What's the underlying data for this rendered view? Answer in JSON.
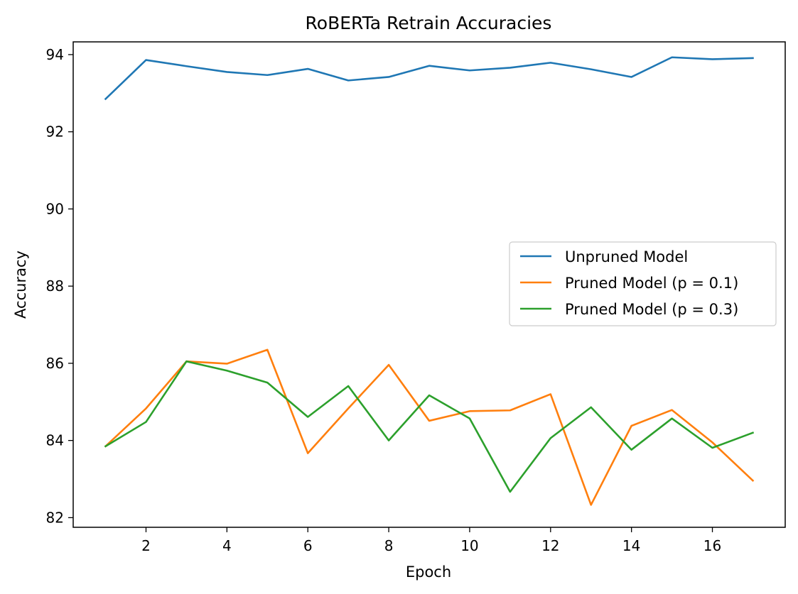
{
  "chart_data": {
    "type": "line",
    "title": "RoBERTa Retrain Accuracies",
    "xlabel": "Epoch",
    "ylabel": "Accuracy",
    "x": [
      1,
      2,
      3,
      4,
      5,
      6,
      7,
      8,
      9,
      10,
      11,
      12,
      13,
      14,
      15,
      16,
      17
    ],
    "xticks": [
      "2",
      "4",
      "6",
      "8",
      "10",
      "12",
      "14",
      "16"
    ],
    "yticks": [
      "82",
      "84",
      "86",
      "88",
      "90",
      "92",
      "94"
    ],
    "xlim": [
      0.2,
      17.8
    ],
    "ylim": [
      81.75,
      94.33
    ],
    "grid": false,
    "legend_position": "center-right",
    "series": [
      {
        "name": "Unpruned Model",
        "color": "#1f77b4",
        "values": [
          92.85,
          93.86,
          93.7,
          93.55,
          93.47,
          93.63,
          93.33,
          93.42,
          93.71,
          93.59,
          93.66,
          93.79,
          93.62,
          93.42,
          93.93,
          93.88,
          93.91
        ]
      },
      {
        "name": "Pruned Model (p = 0.1)",
        "color": "#ff7f0e",
        "values": [
          83.85,
          84.83,
          86.05,
          85.99,
          86.35,
          83.67,
          84.83,
          85.96,
          84.51,
          84.76,
          84.78,
          85.2,
          82.33,
          84.38,
          84.79,
          83.95,
          82.96
        ]
      },
      {
        "name": "Pruned Model (p = 0.3)",
        "color": "#2ca02c",
        "values": [
          83.85,
          84.48,
          86.05,
          85.81,
          85.5,
          84.61,
          85.41,
          84.0,
          85.17,
          84.57,
          82.67,
          84.06,
          84.86,
          83.76,
          84.57,
          83.81,
          84.2
        ]
      }
    ]
  }
}
